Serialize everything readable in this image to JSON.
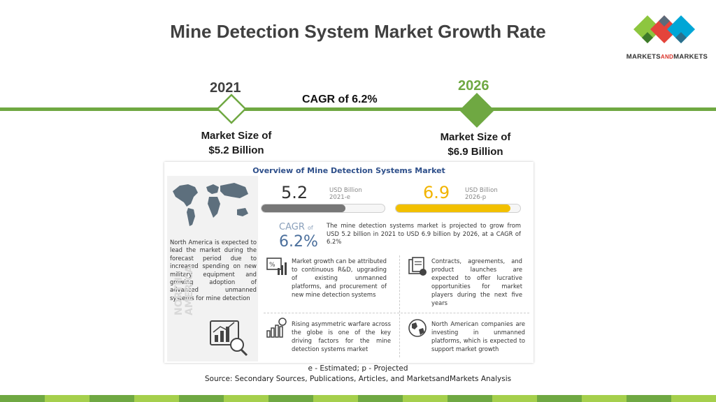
{
  "slide": {
    "title": "Mine Detection System Market Growth Rate"
  },
  "logo": {
    "text_main1": "MARKETS",
    "text_accent": "AND",
    "text_main2": "MARKETS",
    "colors": [
      "#e4443b",
      "#8dc63f",
      "#00a6d6",
      "#5b6b7a"
    ]
  },
  "timeline": {
    "start_year": "2021",
    "end_year": "2026",
    "cagr": "CAGR of 6.2%",
    "start_size": [
      "Market Size of",
      "$5.2 Billion"
    ],
    "end_size": [
      "Market Size of",
      "$6.9 Billion"
    ],
    "line_color": "#6fa842"
  },
  "infographic": {
    "title": "Overview of Mine Detection Systems Market",
    "value_2021": "5.2",
    "unit_2021": [
      "USD Billion",
      "2021-e"
    ],
    "value_2026": "6.9",
    "unit_2026": [
      "USD Billion",
      "2026-p"
    ],
    "progress_2021": 0.68,
    "progress_2026": 0.92,
    "cagr_label": "CAGR",
    "cagr_of": "of",
    "cagr_value": "6.2%",
    "overview_text": "The mine detection systems market is projected to grow from USD 5.2 billion in 2021 to USD 6.9 billion by 2026, at a CAGR of 6.2%",
    "region_label": [
      "NORTH",
      "AMERICA"
    ],
    "region_text": "North America is expected to lead the market during the forecast period due to increased spending on new military equipment and growing adoption of advanced unmanned systems for mine detection",
    "blocks": [
      {
        "icon": "chart-gear-icon",
        "text": "Market growth can be attributed to continuous R&D, upgrading of existing unmanned platforms, and procurement of new mine detection systems"
      },
      {
        "icon": "document-stack-icon",
        "text": "Contracts, agreements, and product launches are expected to offer lucrative opportunities for market players during the next five years"
      },
      {
        "icon": "bar-coin-icon",
        "text": "Rising asymmetric warfare across the globe is one of the key driving factors for the mine detection systems market"
      },
      {
        "icon": "globe-icon",
        "text": "North American companies are investing in unmanned platforms, which is expected to support market growth"
      }
    ]
  },
  "footnote": {
    "legend": "e - Estimated; p - Projected",
    "source": "Source: Secondary Sources, Publications, Articles, and MarketsandMarkets Analysis"
  },
  "footer_colors": [
    "#6fa842",
    "#a5cf4c",
    "#6fa842",
    "#a5cf4c",
    "#6fa842",
    "#a5cf4c",
    "#6fa842",
    "#a5cf4c",
    "#6fa842",
    "#a5cf4c",
    "#6fa842",
    "#a5cf4c",
    "#6fa842",
    "#a5cf4c",
    "#6fa842",
    "#a5cf4c"
  ]
}
